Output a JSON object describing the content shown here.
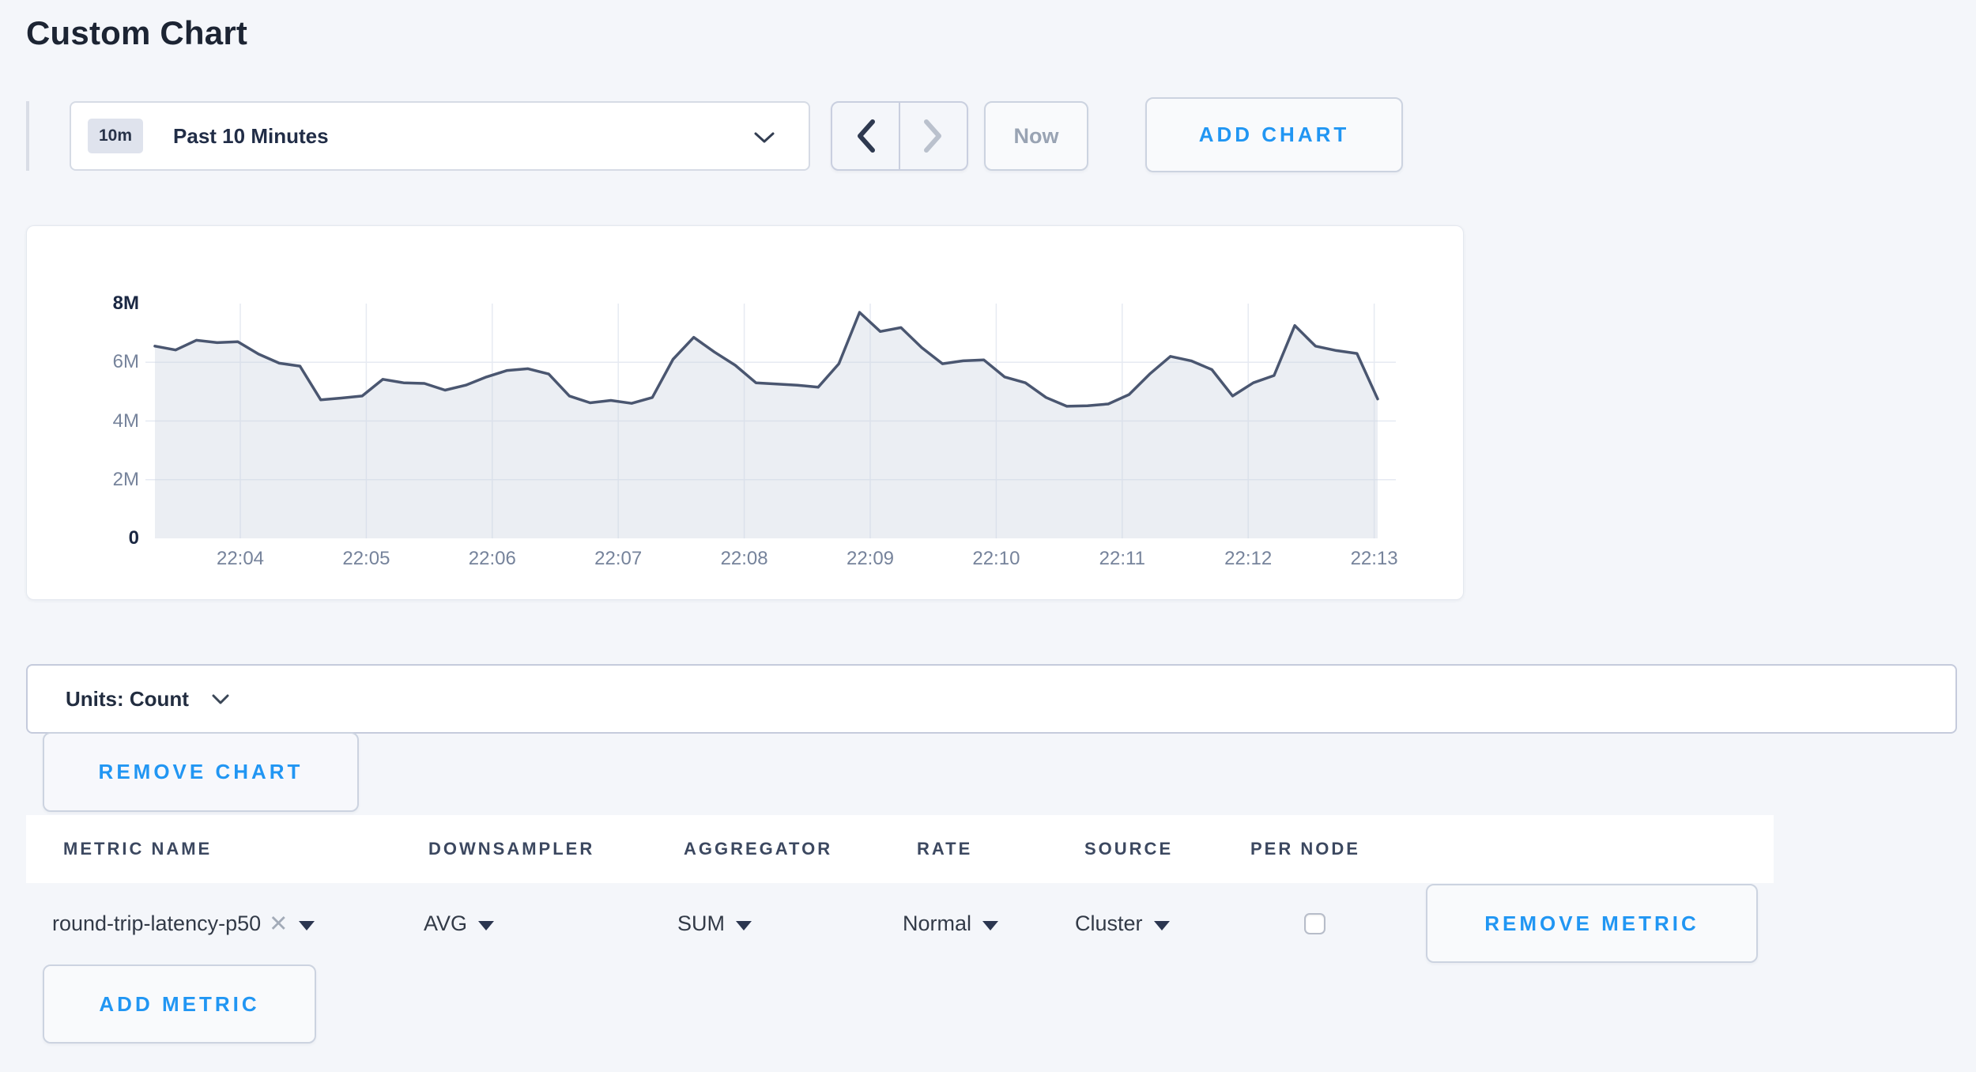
{
  "page": {
    "title": "Custom Chart",
    "accent_blue": "#2196f3"
  },
  "toolbar": {
    "time_scale_badge": "10m",
    "time_window_label": "Past 10 Minutes",
    "now_label": "Now",
    "add_chart_label": "ADD CHART"
  },
  "chart_data": {
    "type": "area",
    "title": "",
    "unit": "count",
    "x_ticks": [
      "22:04",
      "22:05",
      "22:06",
      "22:07",
      "22:08",
      "22:09",
      "22:10",
      "22:11",
      "22:12",
      "22:13"
    ],
    "y_ticks": [
      "8M",
      "6M",
      "4M",
      "2M",
      "0"
    ],
    "ylim": [
      0,
      8000000
    ],
    "x_start": "22:03:20",
    "x_end": "22:13:00",
    "grid": true,
    "legend": "none",
    "colors": {
      "line": "#4a5670",
      "fill": "#ebedf2",
      "grid": "#e6eaf2"
    },
    "series": [
      {
        "name": "round-trip-latency-p50",
        "values_millions": [
          6.55,
          6.42,
          6.75,
          6.67,
          6.7,
          6.28,
          5.97,
          5.87,
          4.72,
          4.78,
          4.85,
          5.42,
          5.3,
          5.28,
          5.05,
          5.22,
          5.5,
          5.72,
          5.78,
          5.6,
          4.85,
          4.62,
          4.7,
          4.6,
          4.8,
          6.1,
          6.85,
          6.35,
          5.9,
          5.3,
          5.26,
          5.22,
          5.15,
          5.95,
          7.7,
          7.05,
          7.18,
          6.5,
          5.95,
          6.05,
          6.08,
          5.5,
          5.3,
          4.8,
          4.5,
          4.52,
          4.58,
          4.9,
          5.6,
          6.2,
          6.05,
          5.75,
          4.85,
          5.3,
          5.55,
          7.25,
          6.55,
          6.4,
          6.3,
          4.75
        ]
      }
    ]
  },
  "units_bar": {
    "label": "Units: Count"
  },
  "chart_actions": {
    "remove_chart_label": "REMOVE CHART"
  },
  "metrics_table": {
    "headers": [
      "METRIC NAME",
      "DOWNSAMPLER",
      "AGGREGATOR",
      "RATE",
      "SOURCE",
      "PER NODE"
    ],
    "row": {
      "metric_name": "round-trip-latency-p50",
      "downsampler": "AVG",
      "aggregator": "SUM",
      "rate": "Normal",
      "source": "Cluster",
      "per_node_checked": false,
      "remove_metric_label": "REMOVE METRIC"
    },
    "add_metric_label": "ADD METRIC"
  }
}
